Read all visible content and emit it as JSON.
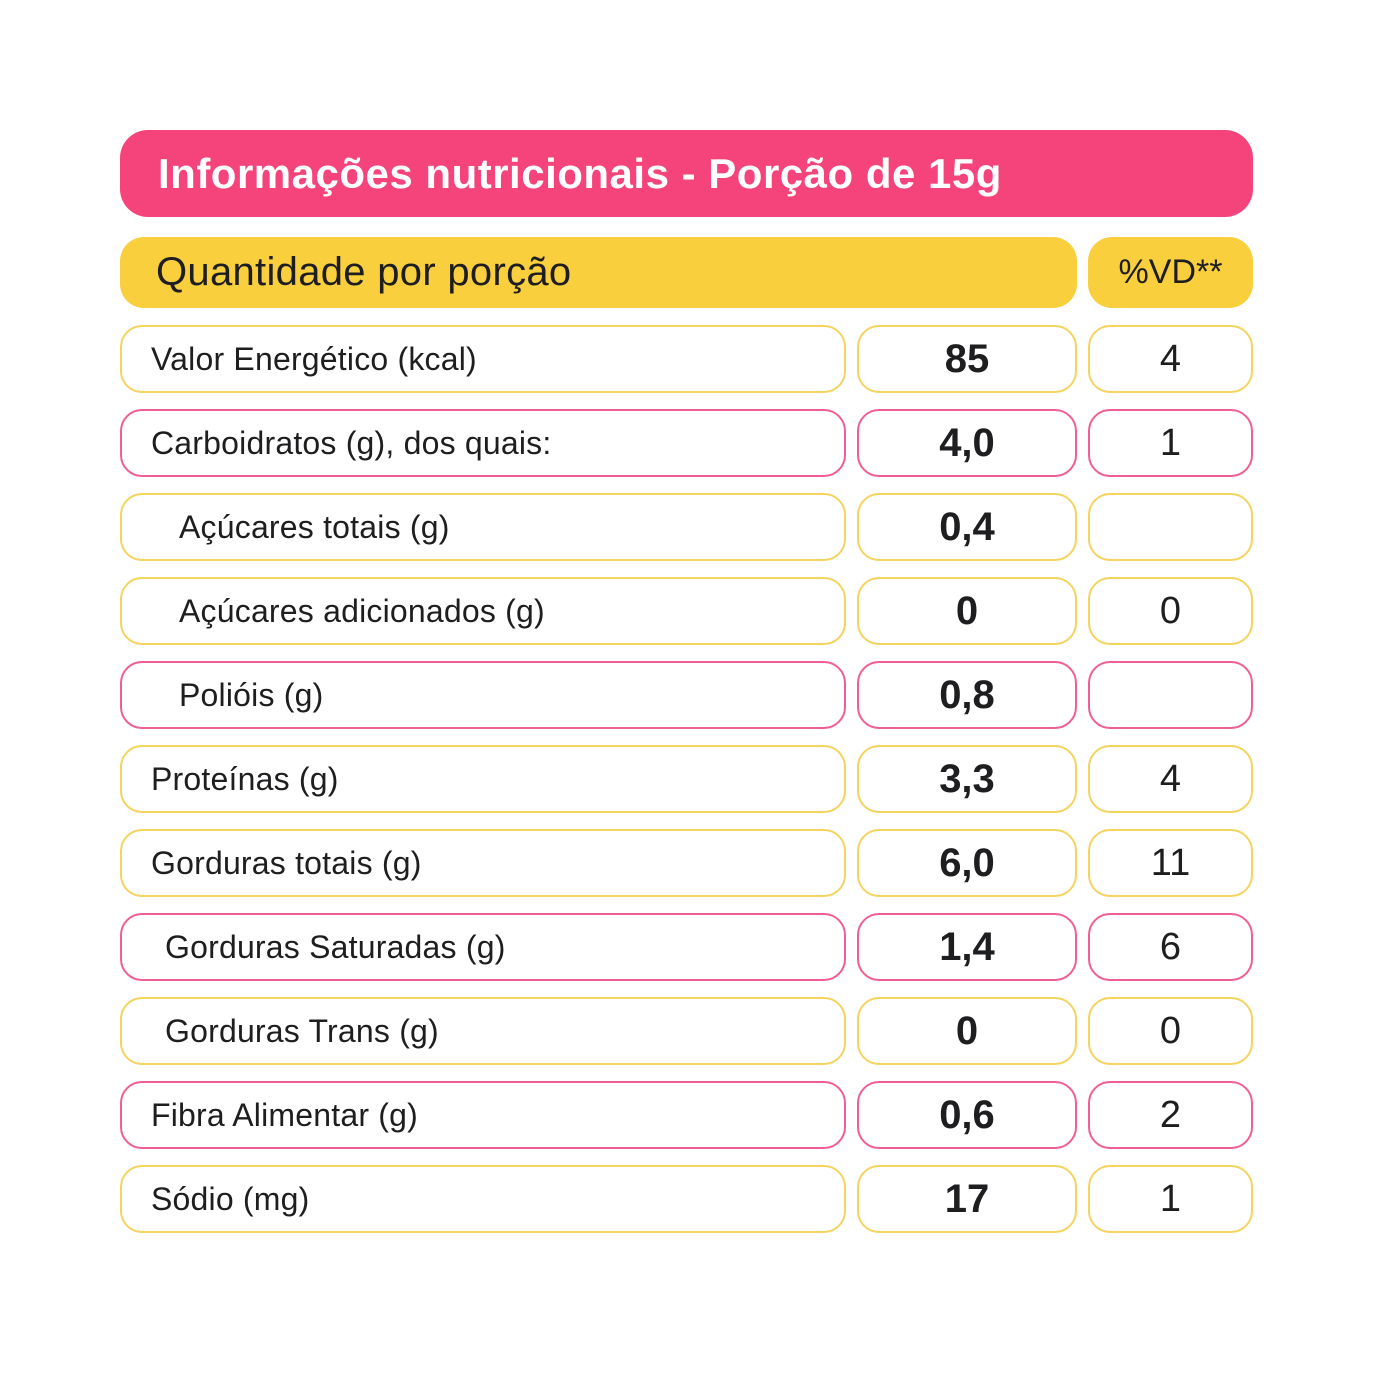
{
  "title": "Informações nutricionais - Porção de 15g",
  "columns": {
    "quantity_header": "Quantidade por porção",
    "dv_header": "%VD**"
  },
  "colors": {
    "pink": "#F5437B",
    "pink_border": "#F15E95",
    "yellow": "#F9CF3E",
    "yellow_border": "#F5D35F",
    "ink": "#1E1E20",
    "background": "#FFFFFF"
  },
  "rows": [
    {
      "label": "Valor Energético (kcal)",
      "value": "85",
      "dv": "4",
      "accent": "yellow",
      "indent": 0
    },
    {
      "label": "Carboidratos (g), dos quais:",
      "value": "4,0",
      "dv": "1",
      "accent": "pink",
      "indent": 0
    },
    {
      "label": "Açúcares totais (g)",
      "value": "0,4",
      "dv": "",
      "accent": "yellow",
      "indent": 2
    },
    {
      "label": "Açúcares adicionados (g)",
      "value": "0",
      "dv": "0",
      "accent": "yellow",
      "indent": 2
    },
    {
      "label": "Polióis (g)",
      "value": "0,8",
      "dv": "",
      "accent": "pink",
      "indent": 2
    },
    {
      "label": "Proteínas (g)",
      "value": "3,3",
      "dv": "4",
      "accent": "yellow",
      "indent": 0
    },
    {
      "label": "Gorduras totais (g)",
      "value": "6,0",
      "dv": "11",
      "accent": "yellow",
      "indent": 0
    },
    {
      "label": "Gorduras Saturadas (g)",
      "value": "1,4",
      "dv": "6",
      "accent": "pink",
      "indent": 1
    },
    {
      "label": "Gorduras Trans (g)",
      "value": "0",
      "dv": "0",
      "accent": "yellow",
      "indent": 1
    },
    {
      "label": "Fibra Alimentar (g)",
      "value": "0,6",
      "dv": "2",
      "accent": "pink",
      "indent": 0
    },
    {
      "label": "Sódio (mg)",
      "value": "17",
      "dv": "1",
      "accent": "yellow",
      "indent": 0
    }
  ]
}
